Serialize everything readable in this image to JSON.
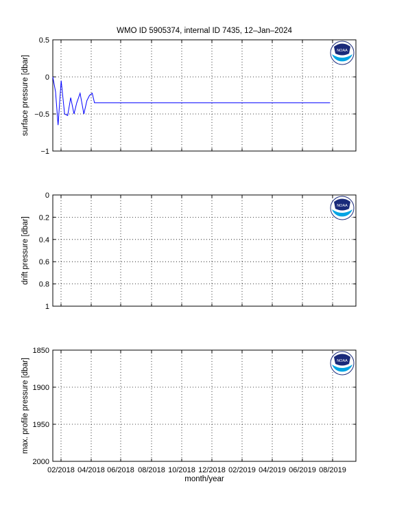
{
  "figure": {
    "title": "WMO ID 5905374, internal ID 7435, 12–Jan–2024",
    "xlabel": "month/year",
    "xticklabels": [
      "02/2018",
      "04/2018",
      "06/2018",
      "08/2018",
      "10/2018",
      "12/2018",
      "02/2019",
      "04/2019",
      "06/2019",
      "08/2019"
    ],
    "logo_text": "NOAA",
    "line_color": "#0000ff"
  },
  "chart_data": [
    {
      "type": "line",
      "ylabel": "surface pressure [dbar]",
      "ylim": [
        -1,
        0.5
      ],
      "y_reversed": false,
      "yticks": [
        -1,
        -0.5,
        0,
        0.5
      ],
      "yticklabels": [
        "−1",
        "−0.5",
        "0",
        "0.5"
      ],
      "grid": true,
      "series": [
        {
          "x": [
            0,
            0.18,
            0.35,
            0.55,
            0.78,
            0.98,
            1.18,
            1.4,
            1.58,
            1.8,
            2.05,
            2.25,
            2.42,
            2.6,
            2.75,
            2.92,
            3.1,
            3.3,
            3.5,
            3.7,
            3.9,
            4.1,
            4.3,
            4.5,
            4.7,
            4.9,
            5.1,
            5.3,
            5.5,
            5.7,
            5.9,
            6.1,
            6.3,
            6.5,
            6.7,
            6.9,
            7.1,
            7.3,
            7.5,
            7.7,
            7.9,
            8.1,
            8.3,
            8.5,
            8.7,
            8.9,
            9.1,
            9.3,
            9.5,
            9.7,
            9.9,
            10.1,
            10.3,
            10.5,
            10.7,
            10.9,
            11.1,
            11.3,
            11.5,
            11.7,
            11.9,
            12.1,
            12.3,
            12.5,
            12.7,
            12.9,
            13.1,
            13.3,
            13.5,
            13.7,
            13.9,
            14.1,
            14.3,
            14.5,
            14.7,
            14.9,
            15.1,
            15.3,
            15.5,
            15.7,
            15.9,
            16.1,
            16.3,
            16.5,
            16.7,
            16.9,
            17.1,
            17.3,
            17.5,
            17.7,
            17.9,
            18.1,
            18.3
          ],
          "y": [
            0,
            -0.2,
            -0.65,
            -0.05,
            -0.5,
            -0.52,
            -0.28,
            -0.5,
            -0.35,
            -0.22,
            -0.5,
            -0.32,
            -0.25,
            -0.22,
            -0.35,
            -0.35,
            -0.35,
            -0.35,
            -0.35,
            -0.35,
            -0.35,
            -0.35,
            -0.35,
            -0.35,
            -0.35,
            -0.35,
            -0.35,
            -0.35,
            -0.35,
            -0.35,
            -0.35,
            -0.35,
            -0.35,
            -0.35,
            -0.35,
            -0.35,
            -0.35,
            -0.35,
            -0.35,
            -0.35,
            -0.35,
            -0.35,
            -0.35,
            -0.35,
            -0.35,
            -0.35,
            -0.35,
            -0.35,
            -0.35,
            -0.35,
            -0.35,
            -0.35,
            -0.35,
            -0.35,
            -0.35,
            -0.35,
            -0.35,
            -0.35,
            -0.35,
            -0.35,
            -0.35,
            -0.35,
            -0.35,
            -0.35,
            -0.35,
            -0.35,
            -0.35,
            -0.35,
            -0.35,
            -0.35,
            -0.35,
            -0.35,
            -0.35,
            -0.35,
            -0.35,
            -0.35,
            -0.35,
            -0.35,
            -0.35,
            -0.35,
            -0.35,
            -0.35,
            -0.35,
            -0.35,
            -0.35,
            -0.35,
            -0.35,
            -0.35,
            -0.35,
            -0.35,
            -0.35,
            -0.35,
            -0.35
          ]
        }
      ]
    },
    {
      "type": "line",
      "ylabel": "drift pressure [dbar]",
      "ylim": [
        0,
        1
      ],
      "y_reversed": true,
      "yticks": [
        0,
        0.2,
        0.4,
        0.6,
        0.8,
        1
      ],
      "yticklabels": [
        "0",
        "0.2",
        "0.4",
        "0.6",
        "0.8",
        "1"
      ],
      "grid": true,
      "series": []
    },
    {
      "type": "line",
      "ylabel": "max. profile pressure [dbar]",
      "ylim": [
        1850,
        2000
      ],
      "y_reversed": true,
      "yticks": [
        1850,
        1900,
        1950,
        2000
      ],
      "yticklabels": [
        "1850",
        "1900",
        "1950",
        "2000"
      ],
      "grid": true,
      "series": []
    }
  ]
}
